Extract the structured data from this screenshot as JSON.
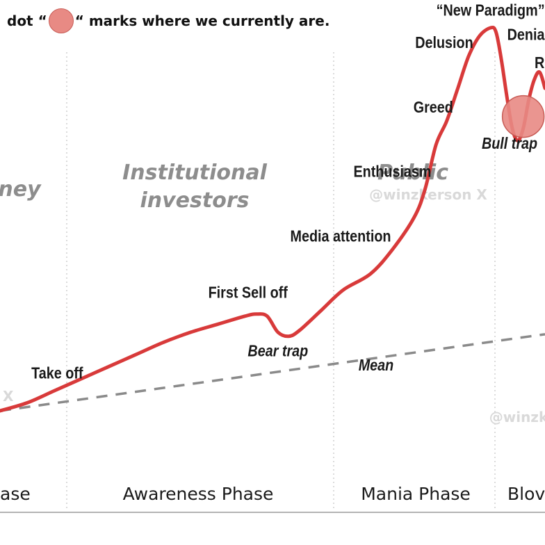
{
  "header": {
    "note_prefix": "dot “",
    "note_suffix": "“ marks where we currently are."
  },
  "colors": {
    "curve": "#d83a3a",
    "mean": "#8a8a8a",
    "dot": "#e88a84",
    "dot_edge": "#c75b55",
    "grid": "#cfcfcf",
    "group_label": "#8d8d8d",
    "phase_label": "#1a1a1a",
    "annotation": "#1a1a1a",
    "watermark": "#d9d9d9"
  },
  "chart_data": {
    "type": "line",
    "title": "",
    "xlabel": "",
    "ylabel": "",
    "x_axis": "time (no ticks shown)",
    "y_axis": "price (no ticks shown)",
    "grid": "vertical dotted separators between phases",
    "phases": [
      {
        "label": "ase"
      },
      {
        "label": "Awareness Phase"
      },
      {
        "label": "Mania Phase"
      },
      {
        "label": "Blov"
      }
    ],
    "investor_groups": [
      {
        "label": "ney"
      },
      {
        "label_line1": "Institutional",
        "label_line2": "investors"
      },
      {
        "label": "Public"
      }
    ],
    "series": [
      {
        "style": "solid red line",
        "points": [
          [
            0,
            5
          ],
          [
            5,
            7
          ],
          [
            10,
            10
          ],
          [
            15,
            13
          ],
          [
            20,
            16
          ],
          [
            25,
            19
          ],
          [
            30,
            22
          ],
          [
            35,
            24.5
          ],
          [
            40,
            26.5
          ],
          [
            45,
            28.5
          ],
          [
            47,
            29
          ],
          [
            49,
            28.5
          ],
          [
            51,
            24.5
          ],
          [
            53,
            23.5
          ],
          [
            55,
            25
          ],
          [
            59,
            30
          ],
          [
            63,
            35
          ],
          [
            68,
            39
          ],
          [
            72,
            45
          ],
          [
            76,
            53
          ],
          [
            78,
            60
          ],
          [
            80,
            71
          ],
          [
            82,
            77
          ],
          [
            84,
            85
          ],
          [
            86,
            93
          ],
          [
            88,
            98
          ],
          [
            90,
            100
          ],
          [
            91,
            99
          ],
          [
            92,
            92
          ],
          [
            93,
            83
          ],
          [
            94,
            75
          ],
          [
            95,
            72
          ],
          [
            96,
            75
          ],
          [
            97,
            82
          ],
          [
            98,
            87
          ],
          [
            99,
            89
          ],
          [
            100,
            85
          ]
        ]
      },
      {
        "name": "Mean",
        "style": "dashed gray line",
        "points": [
          [
            0,
            5
          ],
          [
            100,
            24
          ]
        ]
      }
    ],
    "annotations": [
      {
        "text": "Take off",
        "x": 10.5,
        "y": 13,
        "italic": false
      },
      {
        "text": "First Sell off",
        "x": 45.5,
        "y": 33,
        "italic": false
      },
      {
        "text": "Bear trap",
        "x": 51,
        "y": 18.5,
        "italic": true
      },
      {
        "text": "Mean",
        "x": 69,
        "y": 15,
        "italic": true
      },
      {
        "text": "Media attention",
        "x": 62.5,
        "y": 47,
        "italic": false
      },
      {
        "text": "Enthusiasm",
        "x": 72,
        "y": 63,
        "italic": false
      },
      {
        "text": "Greed",
        "x": 79.5,
        "y": 79,
        "italic": false
      },
      {
        "text": "Delusion",
        "x": 81.5,
        "y": 95,
        "italic": false
      },
      {
        "text": "“New Paradigm”",
        "x": 90,
        "y": 103,
        "italic": false
      },
      {
        "text": "Denia",
        "x": 96.5,
        "y": 97,
        "italic": false
      },
      {
        "text": "R",
        "x": 99,
        "y": 90,
        "italic": false
      },
      {
        "text": "Bull trap",
        "x": 93.5,
        "y": 70,
        "italic": true
      }
    ],
    "current_position": {
      "x": 96,
      "y": 78
    },
    "watermarks": [
      "@winzkerson X",
      "@winzk",
      "X"
    ]
  }
}
